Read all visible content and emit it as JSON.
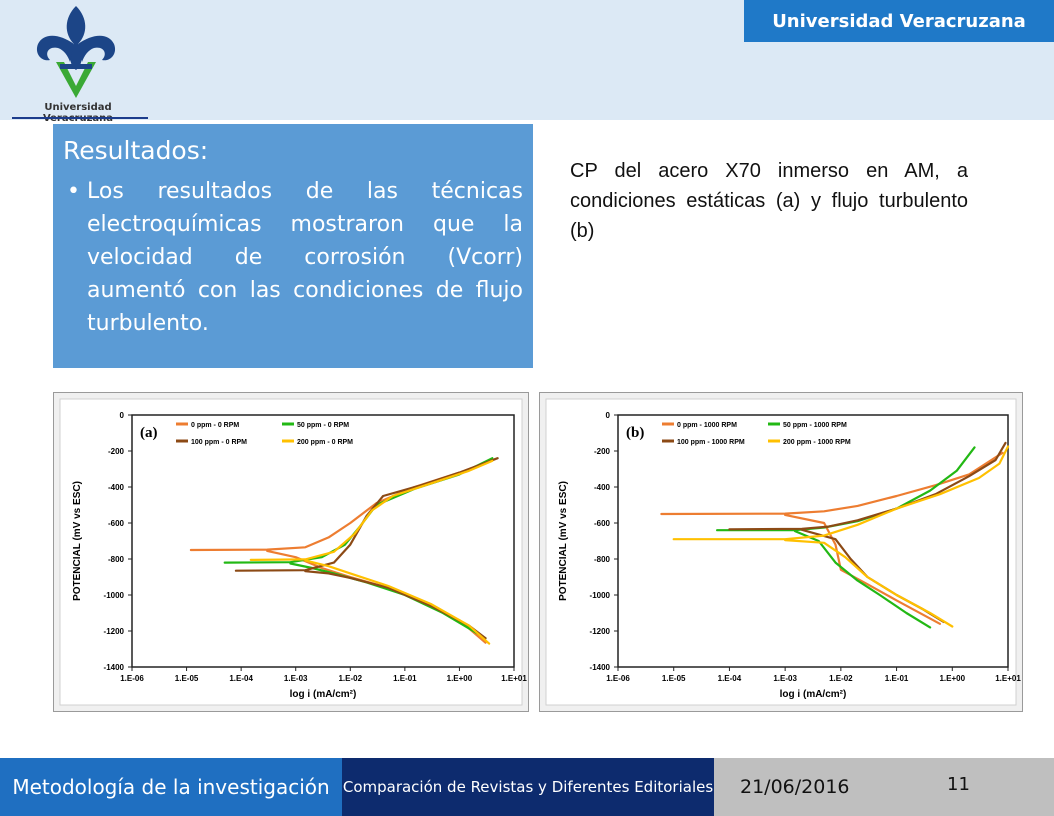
{
  "header": {
    "logo_text": "Universidad Veracruzana",
    "badge": "Universidad Veracruzana",
    "colors": {
      "band": "#dce9f5",
      "badge": "#1f79c8"
    }
  },
  "results": {
    "title": "Resultados:",
    "bullet": "Los resultados de las técnicas electroquímicas mostraron que la velocidad de corrosión (Vcorr) aumentó con las condiciones de flujo turbulento."
  },
  "caption": "CP del acero X70 inmerso en AM, a condiciones estáticas (a) y flujo turbulento (b)",
  "chart_data": [
    {
      "type": "line",
      "panel_label": "(a)",
      "xlabel": "log i (mA/cm²)",
      "ylabel": "POTENCIAL (mV vs ESC)",
      "x_scale": "log",
      "xlim": [
        1e-06,
        10
      ],
      "ylim": [
        -1400,
        0
      ],
      "x_ticks": [
        "1.E-06",
        "1.E-05",
        "1.E-04",
        "1.E-03",
        "1.E-02",
        "1.E-01",
        "1.E+00",
        "1.E+01"
      ],
      "y_ticks": [
        "0",
        "-200",
        "-400",
        "-600",
        "-800",
        "-1000",
        "-1200",
        "-1400"
      ],
      "legend_position": "top",
      "series": [
        {
          "name": "0 ppm - 0 RPM",
          "color": "#ed7d31",
          "anodic": [
            [
              1.2e-05,
              -750
            ],
            [
              0.0003,
              -748
            ],
            [
              0.0015,
              -735
            ],
            [
              0.004,
              -680
            ],
            [
              0.01,
              -600
            ],
            [
              0.03,
              -490
            ],
            [
              0.15,
              -400
            ],
            [
              1,
              -320
            ],
            [
              4.5,
              -245
            ]
          ],
          "cathodic": [
            [
              0.0003,
              -755
            ],
            [
              0.001,
              -790
            ],
            [
              0.003,
              -850
            ],
            [
              0.01,
              -900
            ],
            [
              0.05,
              -960
            ],
            [
              0.2,
              -1040
            ],
            [
              1,
              -1140
            ],
            [
              3,
              -1265
            ]
          ]
        },
        {
          "name": "50 ppm - 0 RPM",
          "color": "#22b814",
          "anodic": [
            [
              5e-05,
              -820
            ],
            [
              0.0008,
              -818
            ],
            [
              0.003,
              -790
            ],
            [
              0.008,
              -720
            ],
            [
              0.015,
              -620
            ],
            [
              0.03,
              -500
            ],
            [
              0.15,
              -410
            ],
            [
              1,
              -330
            ],
            [
              4,
              -240
            ]
          ],
          "cathodic": [
            [
              0.0008,
              -825
            ],
            [
              0.002,
              -850
            ],
            [
              0.005,
              -880
            ],
            [
              0.02,
              -930
            ],
            [
              0.1,
              -1000
            ],
            [
              0.5,
              -1100
            ],
            [
              3,
              -1240
            ]
          ]
        },
        {
          "name": "100 ppm - 0 RPM",
          "color": "#8c4a15",
          "anodic": [
            [
              8e-05,
              -865
            ],
            [
              0.0015,
              -862
            ],
            [
              0.005,
              -820
            ],
            [
              0.01,
              -720
            ],
            [
              0.02,
              -560
            ],
            [
              0.04,
              -450
            ],
            [
              0.2,
              -390
            ],
            [
              1,
              -320
            ],
            [
              5,
              -240
            ]
          ],
          "cathodic": [
            [
              0.0015,
              -868
            ],
            [
              0.004,
              -880
            ],
            [
              0.01,
              -905
            ],
            [
              0.05,
              -960
            ],
            [
              0.3,
              -1060
            ],
            [
              1.5,
              -1170
            ],
            [
              3,
              -1240
            ]
          ]
        },
        {
          "name": "200 ppm - 0 RPM",
          "color": "#ffc000",
          "anodic": [
            [
              0.00015,
              -805
            ],
            [
              0.0015,
              -802
            ],
            [
              0.005,
              -760
            ],
            [
              0.012,
              -660
            ],
            [
              0.025,
              -530
            ],
            [
              0.06,
              -450
            ],
            [
              0.3,
              -380
            ],
            [
              1.5,
              -310
            ],
            [
              4,
              -255
            ]
          ],
          "cathodic": [
            [
              0.0015,
              -808
            ],
            [
              0.004,
              -840
            ],
            [
              0.01,
              -880
            ],
            [
              0.05,
              -950
            ],
            [
              0.3,
              -1050
            ],
            [
              1.5,
              -1170
            ],
            [
              3.5,
              -1270
            ]
          ]
        }
      ]
    },
    {
      "type": "line",
      "panel_label": "(b)",
      "xlabel": "log i (mA/cm²)",
      "ylabel": "POTENCIAL (mV vs ESC)",
      "x_scale": "log",
      "xlim": [
        1e-06,
        10
      ],
      "ylim": [
        -1400,
        0
      ],
      "x_ticks": [
        "1.E-06",
        "1.E-05",
        "1.E-04",
        "1.E-03",
        "1.E-02",
        "1.E-01",
        "1.E+00",
        "1.E+01"
      ],
      "y_ticks": [
        "0",
        "-200",
        "-400",
        "-600",
        "-800",
        "-1000",
        "-1200",
        "-1400"
      ],
      "legend_position": "top",
      "series": [
        {
          "name": "0 ppm - 1000 RPM",
          "color": "#ed7d31",
          "anodic": [
            [
              6e-06,
              -550
            ],
            [
              0.001,
              -548
            ],
            [
              0.005,
              -535
            ],
            [
              0.02,
              -505
            ],
            [
              0.1,
              -450
            ],
            [
              0.5,
              -390
            ],
            [
              2,
              -330
            ],
            [
              8,
              -210
            ]
          ],
          "cathodic": [
            [
              0.001,
              -555
            ],
            [
              0.005,
              -600
            ],
            [
              0.008,
              -720
            ],
            [
              0.01,
              -860
            ],
            [
              0.03,
              -940
            ],
            [
              0.1,
              -1030
            ],
            [
              0.3,
              -1110
            ],
            [
              0.6,
              -1160
            ]
          ]
        },
        {
          "name": "50 ppm - 1000 RPM",
          "color": "#22b814",
          "anodic": [
            [
              6e-05,
              -640
            ],
            [
              0.0015,
              -640
            ],
            [
              0.005,
              -625
            ],
            [
              0.02,
              -590
            ],
            [
              0.1,
              -520
            ],
            [
              0.4,
              -420
            ],
            [
              1.2,
              -310
            ],
            [
              2.5,
              -180
            ]
          ],
          "cathodic": [
            [
              0.0015,
              -645
            ],
            [
              0.004,
              -700
            ],
            [
              0.008,
              -820
            ],
            [
              0.02,
              -920
            ],
            [
              0.05,
              -1000
            ],
            [
              0.15,
              -1100
            ],
            [
              0.4,
              -1180
            ]
          ]
        },
        {
          "name": "100 ppm - 1000 RPM",
          "color": "#8c4a15",
          "anodic": [
            [
              0.0001,
              -635
            ],
            [
              0.002,
              -632
            ],
            [
              0.006,
              -620
            ],
            [
              0.02,
              -585
            ],
            [
              0.1,
              -520
            ],
            [
              0.5,
              -440
            ],
            [
              2,
              -340
            ],
            [
              6,
              -250
            ],
            [
              9,
              -155
            ]
          ],
          "cathodic": [
            [
              0.002,
              -638
            ],
            [
              0.008,
              -690
            ],
            [
              0.015,
              -800
            ],
            [
              0.03,
              -900
            ],
            [
              0.1,
              -1000
            ],
            [
              0.3,
              -1080
            ],
            [
              0.7,
              -1150
            ]
          ]
        },
        {
          "name": "200 ppm - 1000 RPM",
          "color": "#ffc000",
          "anodic": [
            [
              1e-05,
              -690
            ],
            [
              0.001,
              -690
            ],
            [
              0.005,
              -670
            ],
            [
              0.02,
              -610
            ],
            [
              0.1,
              -520
            ],
            [
              0.6,
              -440
            ],
            [
              3,
              -350
            ],
            [
              7,
              -270
            ],
            [
              10,
              -175
            ]
          ],
          "cathodic": [
            [
              0.001,
              -695
            ],
            [
              0.005,
              -710
            ],
            [
              0.012,
              -790
            ],
            [
              0.03,
              -900
            ],
            [
              0.1,
              -1000
            ],
            [
              0.4,
              -1100
            ],
            [
              1,
              -1175
            ]
          ]
        }
      ]
    }
  ],
  "footer": {
    "course": "Metodología de la investigación",
    "topic": "Comparación de Revistas y Diferentes Editoriales",
    "date": "21/06/2016",
    "page": "11"
  }
}
